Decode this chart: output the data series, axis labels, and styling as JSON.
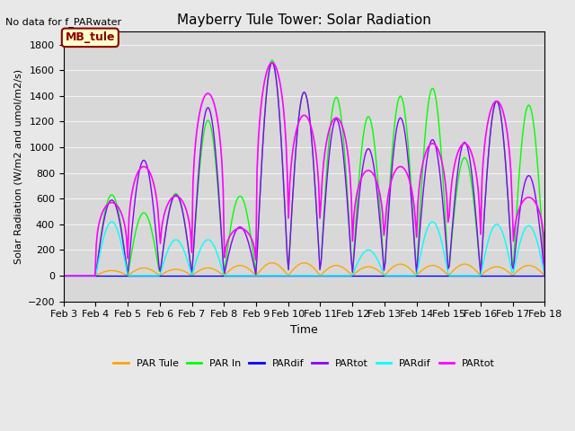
{
  "title": "Mayberry Tule Tower: Solar Radiation",
  "subtitle": "No data for f_PARwater",
  "xlabel": "Time",
  "ylabel": "Solar Radiation (W/m2 and umol/m2/s)",
  "ylim": [
    -200,
    1900
  ],
  "yticks": [
    -200,
    0,
    200,
    400,
    600,
    800,
    1000,
    1200,
    1400,
    1600,
    1800
  ],
  "legend_labels": [
    "PAR Tule",
    "PAR In",
    "PARdif",
    "PARtot",
    "PARdif",
    "PARtot"
  ],
  "legend_colors": [
    "#FFA500",
    "#00FF00",
    "#0000FF",
    "#8800FF",
    "#00FFFF",
    "#FF00FF"
  ],
  "bg_color": "#E8E8E8",
  "plot_bg_color": "#D8D8D8",
  "annotation_text": "MB_tule",
  "annotation_color": "#8B0000",
  "annotation_bg": "#FFFFCC",
  "n_days": 16,
  "x_start": 3,
  "x_end": 18,
  "xtick_labels": [
    "Feb 3",
    "Feb 4",
    "Feb 5",
    "Feb 6",
    "Feb 7",
    "Feb 8",
    "Feb 9",
    "Feb 10",
    "Feb 11",
    "Feb 12",
    "Feb 13",
    "Feb 14",
    "Feb 15",
    "Feb 16",
    "Feb 17",
    "Feb 18"
  ],
  "xtick_positions": [
    3,
    4,
    5,
    6,
    7,
    8,
    9,
    10,
    11,
    12,
    13,
    14,
    15,
    16,
    17,
    18
  ]
}
